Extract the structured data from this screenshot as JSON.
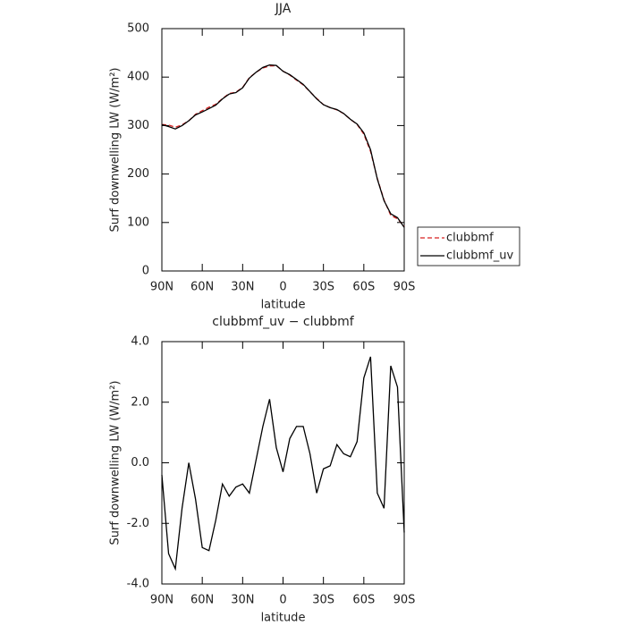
{
  "chart_data": [
    {
      "type": "line",
      "title": "JJA",
      "xlabel": "latitude",
      "ylabel": "Surf downwelling LW (W/m²)",
      "x": [
        90,
        85,
        80,
        75,
        70,
        65,
        60,
        55,
        50,
        45,
        40,
        35,
        30,
        25,
        20,
        15,
        10,
        5,
        0,
        -5,
        -10,
        -15,
        -20,
        -25,
        -30,
        -35,
        -40,
        -45,
        -50,
        -55,
        -60,
        -65,
        -70,
        -75,
        -80,
        -85,
        -90
      ],
      "xlim": [
        90,
        -90
      ],
      "xticks": [
        {
          "value": 90,
          "label": "90N"
        },
        {
          "value": 60,
          "label": "60N"
        },
        {
          "value": 30,
          "label": "30N"
        },
        0,
        {
          "value": -30,
          "label": "30S"
        },
        {
          "value": -60,
          "label": "60S"
        },
        {
          "value": -90,
          "label": "90S"
        }
      ],
      "ylim": [
        0,
        500
      ],
      "yticks": [
        0,
        100,
        200,
        300,
        400,
        500
      ],
      "legend": "outside-right",
      "series": [
        {
          "name": "clubbmf",
          "color": "#d62020",
          "dashed": true,
          "values": [
            302.4,
            301,
            296.5,
            301.5,
            310,
            323.2,
            330.8,
            337.9,
            343.9,
            355.7,
            366.1,
            368.8,
            378.7,
            399,
            409.9,
            418.8,
            422.9,
            423.5,
            412.3,
            404.2,
            393.8,
            383.8,
            369.7,
            356,
            343.2,
            337.1,
            332.4,
            324.7,
            312.8,
            302.3,
            282.2,
            246.5,
            191,
            146.5,
            114.8,
            107.5,
            92.3
          ]
        },
        {
          "name": "clubbmf_uv",
          "color": "#000000",
          "dashed": false,
          "values": [
            302,
            298,
            293,
            300,
            310,
            322,
            328,
            335,
            342,
            355,
            365,
            368,
            378,
            398,
            410,
            420,
            425,
            424,
            412,
            405,
            395,
            385,
            370,
            355,
            343,
            337,
            333,
            325,
            313,
            303,
            285,
            250,
            190,
            145,
            118,
            110,
            90
          ]
        }
      ]
    },
    {
      "type": "line",
      "title": "clubbmf_uv − clubbmf",
      "xlabel": "latitude",
      "ylabel": "Surf downwelling LW (W/m²)",
      "x": [
        90,
        85,
        80,
        75,
        70,
        65,
        60,
        55,
        50,
        45,
        40,
        35,
        30,
        25,
        20,
        15,
        10,
        5,
        0,
        -5,
        -10,
        -15,
        -20,
        -25,
        -30,
        -35,
        -40,
        -45,
        -50,
        -55,
        -60,
        -65,
        -70,
        -75,
        -80,
        -85,
        -90
      ],
      "xlim": [
        90,
        -90
      ],
      "xticks": [
        {
          "value": 90,
          "label": "90N"
        },
        {
          "value": 60,
          "label": "60N"
        },
        {
          "value": 30,
          "label": "30N"
        },
        0,
        {
          "value": -30,
          "label": "30S"
        },
        {
          "value": -60,
          "label": "60S"
        },
        {
          "value": -90,
          "label": "90S"
        }
      ],
      "ylim": [
        -4,
        4
      ],
      "yticks": [
        {
          "value": -4,
          "label": "-4.0"
        },
        {
          "value": -2,
          "label": "-2.0"
        },
        {
          "value": 0,
          "label": "0.0"
        },
        {
          "value": 2,
          "label": "2.0"
        },
        {
          "value": 4,
          "label": "4.0"
        }
      ],
      "series": [
        {
          "color": "#000000",
          "dashed": false,
          "values": [
            -0.4,
            -3.0,
            -3.5,
            -1.5,
            0.0,
            -1.2,
            -2.8,
            -2.9,
            -1.9,
            -0.7,
            -1.1,
            -0.8,
            -0.7,
            -1.0,
            0.1,
            1.2,
            2.1,
            0.5,
            -0.3,
            0.8,
            1.2,
            1.2,
            0.3,
            -1.0,
            -0.2,
            -0.1,
            0.6,
            0.3,
            0.2,
            0.7,
            2.8,
            3.5,
            -1.0,
            -1.5,
            3.2,
            2.5,
            -2.3
          ]
        }
      ]
    }
  ]
}
